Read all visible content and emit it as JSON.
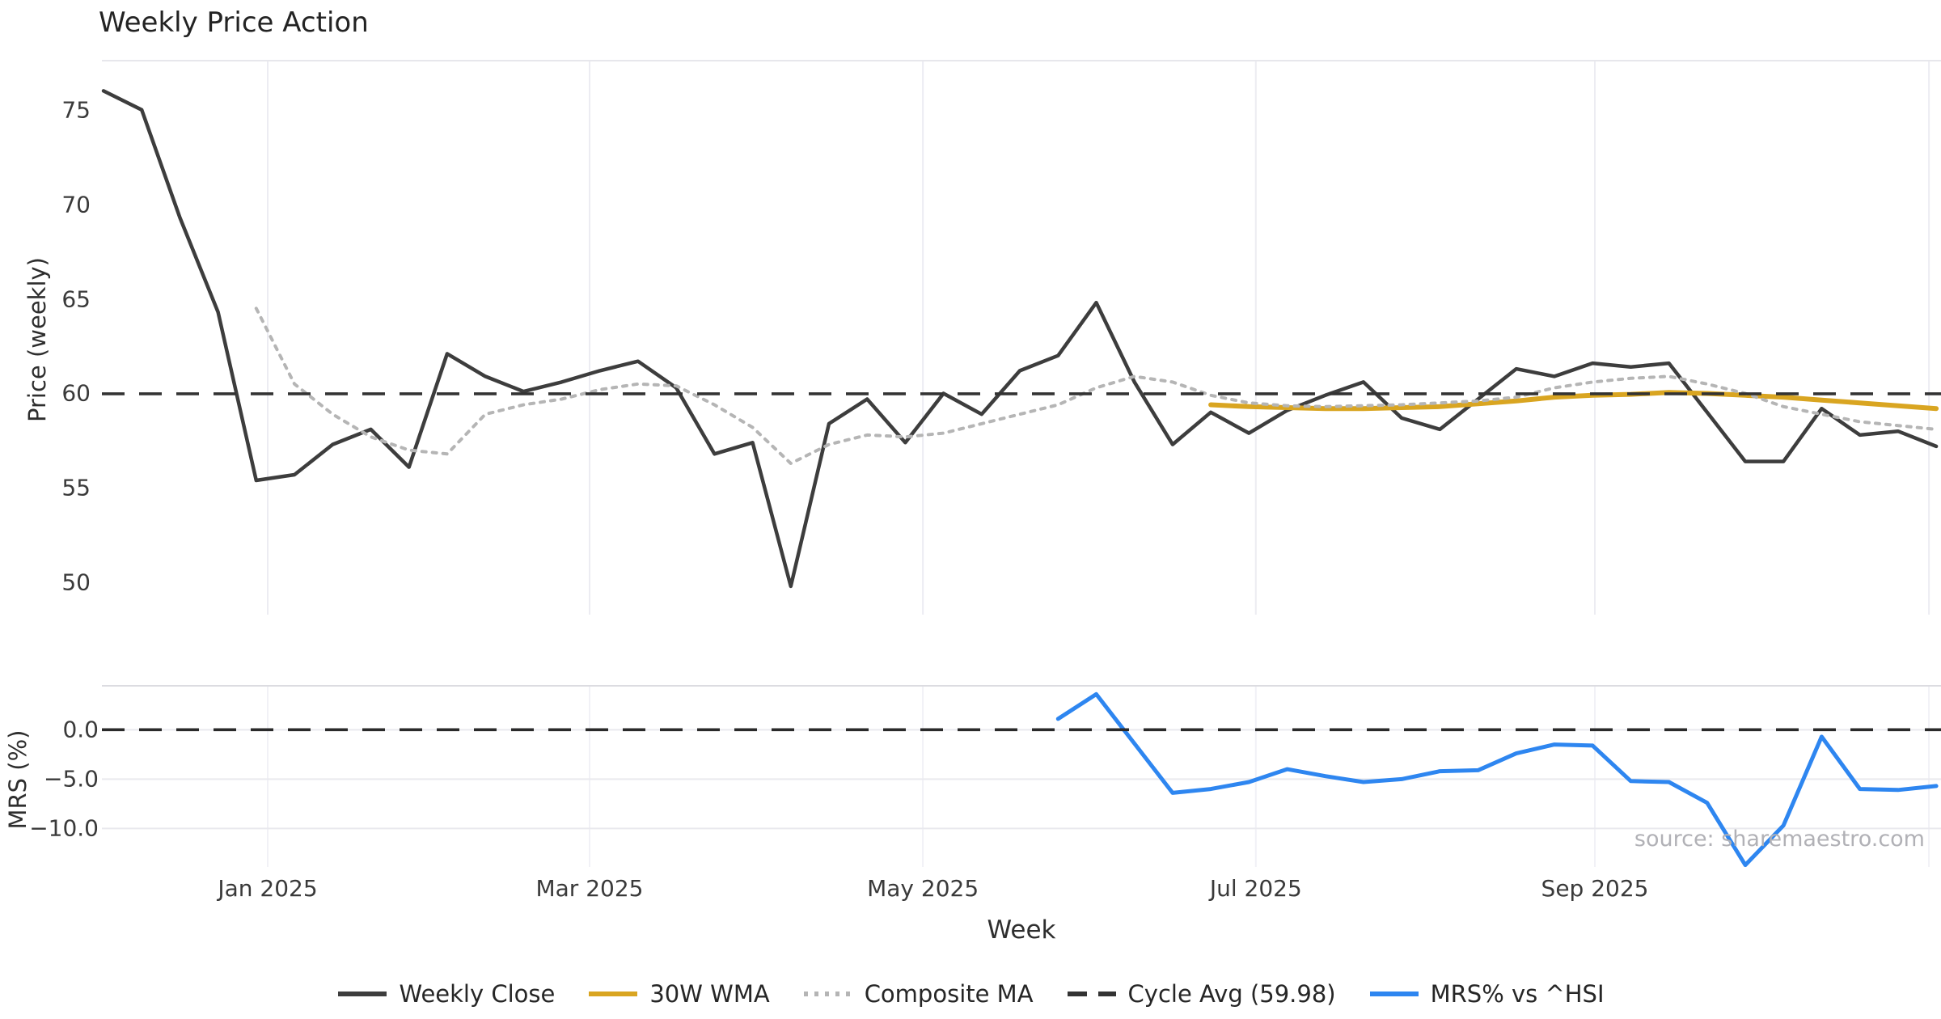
{
  "title": "Weekly Price Action",
  "source_text": "source: sharemaestro.com",
  "axes": {
    "price_ylabel": "Price (weekly)",
    "mrs_ylabel": "MRS (%)",
    "xlabel": "Week",
    "price_tick_labels": [
      "75",
      "70",
      "65",
      "60",
      "55",
      "50"
    ],
    "mrs_tick_labels": [
      "0.0",
      "−5.0",
      "−10.0"
    ],
    "x_tick_labels": [
      "Jan 2025",
      "Mar 2025",
      "May 2025",
      "Jul 2025",
      "Sep 2025"
    ]
  },
  "legend": [
    {
      "label": "Weekly Close",
      "color": "#3d3d3d",
      "style": "solid"
    },
    {
      "label": "30W WMA",
      "color": "#d9a521",
      "style": "solid"
    },
    {
      "label": "Composite MA",
      "color": "#b5b5b5",
      "style": "dotted"
    },
    {
      "label": "Cycle Avg (59.98)",
      "color": "#333333",
      "style": "dashed"
    },
    {
      "label": "MRS% vs ^HSI",
      "color": "#2e86f0",
      "style": "solid"
    }
  ],
  "chart_data": {
    "type": "line",
    "xlabel": "Week",
    "x_weekly_dates": [
      "2024-12-02",
      "2024-12-09",
      "2024-12-16",
      "2024-12-23",
      "2024-12-30",
      "2025-01-06",
      "2025-01-13",
      "2025-01-20",
      "2025-01-27",
      "2025-02-03",
      "2025-02-10",
      "2025-02-17",
      "2025-02-24",
      "2025-03-03",
      "2025-03-10",
      "2025-03-17",
      "2025-03-24",
      "2025-03-31",
      "2025-04-07",
      "2025-04-14",
      "2025-04-21",
      "2025-04-28",
      "2025-05-05",
      "2025-05-12",
      "2025-05-19",
      "2025-05-26",
      "2025-06-02",
      "2025-06-09",
      "2025-06-16",
      "2025-06-23",
      "2025-06-30",
      "2025-07-07",
      "2025-07-14",
      "2025-07-21",
      "2025-07-28",
      "2025-08-04",
      "2025-08-11",
      "2025-08-18",
      "2025-08-25",
      "2025-09-01",
      "2025-09-08",
      "2025-09-15",
      "2025-09-22",
      "2025-09-29",
      "2025-10-06",
      "2025-10-13",
      "2025-10-20",
      "2025-10-27",
      "2025-11-03"
    ],
    "x_ticks": [
      {
        "label": "Jan 2025",
        "pos": 4.3
      },
      {
        "label": "Mar 2025",
        "pos": 12.73
      },
      {
        "label": "May 2025",
        "pos": 21.46
      },
      {
        "label": "Jul 2025",
        "pos": 30.18
      },
      {
        "label": "Sep 2025",
        "pos": 39.06
      },
      {
        "label": "",
        "pos": 47.81
      }
    ],
    "legend_position": "bottom-center",
    "grid": "vertical month gridlines both panels; horizontal gridlines bottom panel only",
    "panels": [
      {
        "id": "price",
        "ylabel": "Price (weekly)",
        "ylim": [
          48.3,
          77.6
        ],
        "yticks": [
          75,
          70,
          65,
          60,
          55,
          50
        ],
        "series": [
          {
            "name": "Weekly Close",
            "color": "#3d3d3d",
            "style": "solid",
            "width": 4.5,
            "start_index": 0,
            "values": [
              76.0,
              75.0,
              69.3,
              64.3,
              55.4,
              55.7,
              57.3,
              58.1,
              56.1,
              62.1,
              60.9,
              60.1,
              60.6,
              61.2,
              61.7,
              60.3,
              56.8,
              57.4,
              49.8,
              58.4,
              59.7,
              57.4,
              60.0,
              58.9,
              61.2,
              62.0,
              64.8,
              60.6,
              57.3,
              59.0,
              57.9,
              59.1,
              59.9,
              60.6,
              58.7,
              58.1,
              59.7,
              61.3,
              60.9,
              61.6,
              61.4,
              61.6,
              59.0,
              56.4,
              56.4,
              59.2,
              57.8,
              58.0,
              57.2
            ]
          },
          {
            "name": "30W WMA",
            "color": "#d9a521",
            "style": "solid",
            "width": 6,
            "start_index": 29,
            "values": [
              59.4,
              59.3,
              59.25,
              59.2,
              59.2,
              59.25,
              59.3,
              59.45,
              59.6,
              59.8,
              59.9,
              59.95,
              60.05,
              60.0,
              59.9,
              59.8,
              59.65,
              59.5,
              59.35,
              59.2
            ]
          },
          {
            "name": "Composite MA",
            "color": "#b5b5b5",
            "style": "dotted",
            "width": 4,
            "start_index": 4,
            "values": [
              64.5,
              60.5,
              58.9,
              57.7,
              57.0,
              56.8,
              58.9,
              59.4,
              59.7,
              60.2,
              60.5,
              60.4,
              59.4,
              58.2,
              56.3,
              57.3,
              57.8,
              57.7,
              57.9,
              58.4,
              58.9,
              59.4,
              60.3,
              60.9,
              60.6,
              59.9,
              59.5,
              59.35,
              59.3,
              59.35,
              59.4,
              59.5,
              59.6,
              59.8,
              60.3,
              60.6,
              60.8,
              60.9,
              60.5,
              60.0,
              59.3,
              58.9,
              58.5,
              58.3,
              58.1
            ]
          },
          {
            "name": "Cycle Avg (59.98)",
            "color": "#333333",
            "style": "dashed",
            "width": 3.6,
            "constant": 59.98
          }
        ]
      },
      {
        "id": "mrs",
        "ylabel": "MRS (%)",
        "ylim": [
          -13.9,
          4.45
        ],
        "yticks": [
          0,
          -5,
          -10
        ],
        "series": [
          {
            "name": "MRS% vs ^HSI",
            "color": "#2e86f0",
            "style": "solid",
            "width": 5,
            "start_index": 25,
            "values": [
              1.1,
              3.6,
              -1.4,
              -6.4,
              -6.0,
              -5.3,
              -4.0,
              -4.7,
              -5.3,
              -5.0,
              -4.2,
              -4.1,
              -2.4,
              -1.5,
              -1.6,
              -5.2,
              -5.3,
              -7.4,
              -13.7,
              -9.7,
              -0.7,
              -6.0,
              -6.1,
              -5.7
            ]
          },
          {
            "name": "Zero line",
            "color": "#2a2a2a",
            "style": "dashed",
            "width": 3.6,
            "constant": 0
          }
        ]
      }
    ]
  }
}
